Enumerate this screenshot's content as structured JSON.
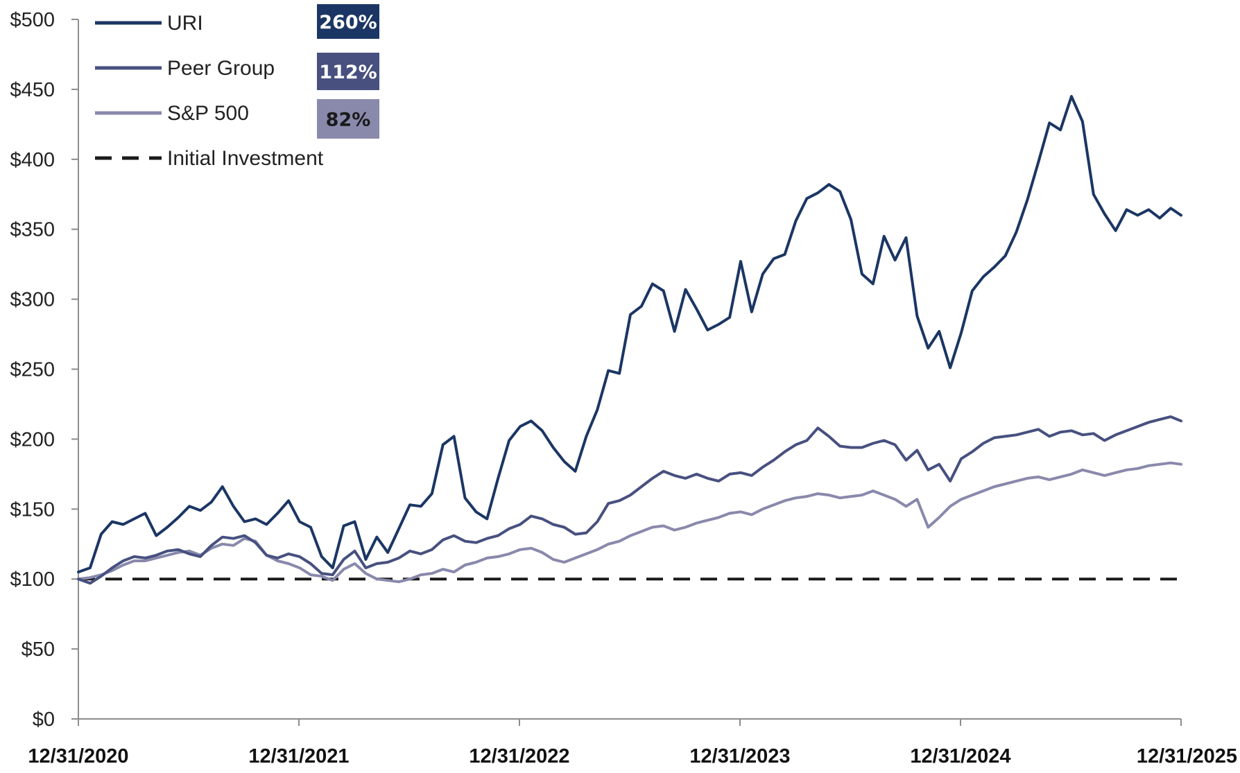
{
  "chart_data": {
    "type": "line",
    "title": "",
    "xlabel": "",
    "ylabel": "",
    "ylim": [
      0,
      500
    ],
    "y_ticks": [
      0,
      50,
      100,
      150,
      200,
      250,
      300,
      350,
      400,
      450,
      500
    ],
    "y_tick_labels": [
      "$0",
      "$50",
      "$100",
      "$150",
      "$200",
      "$250",
      "$300",
      "$350",
      "$400",
      "$450",
      "$500"
    ],
    "x_range": [
      2020.997,
      2025.997
    ],
    "x_ticks": [
      2020.997,
      2021.997,
      2022.997,
      2023.997,
      2024.997,
      2025.997
    ],
    "x_tick_labels": [
      "12/31/2020",
      "12/31/2021",
      "12/31/2022",
      "12/31/2023",
      "12/31/2024",
      "12/31/2025"
    ],
    "grid": false,
    "legend_position": "top-left",
    "colors": {
      "uri": "#1b3664",
      "peer": "#47507f",
      "sp500": "#8889ab",
      "baseline": "#1a1a1a",
      "axis": "#8c8c8c"
    },
    "series": [
      {
        "name": "URI",
        "key": "uri",
        "total_return_label": "260%",
        "badge_color": "#1b3664",
        "badge_text_color": "#ffffff",
        "x": [
          2020.997,
          2021.05,
          2021.1,
          2021.15,
          2021.2,
          2021.25,
          2021.3,
          2021.35,
          2021.4,
          2021.45,
          2021.5,
          2021.55,
          2021.6,
          2021.65,
          2021.7,
          2021.75,
          2021.8,
          2021.85,
          2021.9,
          2021.95,
          2022.0,
          2022.05,
          2022.1,
          2022.15,
          2022.2,
          2022.25,
          2022.3,
          2022.35,
          2022.4,
          2022.45,
          2022.5,
          2022.55,
          2022.6,
          2022.65,
          2022.7,
          2022.75,
          2022.8,
          2022.85,
          2022.9,
          2022.95,
          2023.0,
          2023.05,
          2023.1,
          2023.15,
          2023.2,
          2023.25,
          2023.3,
          2023.35,
          2023.4,
          2023.45,
          2023.5,
          2023.55,
          2023.6,
          2023.65,
          2023.7,
          2023.75,
          2023.8,
          2023.85,
          2023.9,
          2023.95,
          2024.0,
          2024.05,
          2024.1,
          2024.15,
          2024.2,
          2024.25,
          2024.3,
          2024.35,
          2024.4,
          2024.45,
          2024.5,
          2024.55,
          2024.6,
          2024.65,
          2024.7,
          2024.75,
          2024.8,
          2024.85,
          2024.9,
          2024.95,
          2025.0,
          2025.05,
          2025.1,
          2025.15,
          2025.2,
          2025.25,
          2025.3,
          2025.35,
          2025.4,
          2025.45,
          2025.5,
          2025.55,
          2025.6,
          2025.65,
          2025.7,
          2025.75,
          2025.8,
          2025.85,
          2025.9,
          2025.95,
          2025.997
        ],
        "values": [
          105,
          108,
          132,
          141,
          139,
          143,
          147,
          131,
          137,
          144,
          152,
          149,
          155,
          166,
          152,
          141,
          143,
          139,
          147,
          156,
          141,
          137,
          116,
          108,
          138,
          141,
          114,
          130,
          119,
          136,
          153,
          152,
          161,
          196,
          202,
          158,
          148,
          143,
          172,
          199,
          209,
          213,
          206,
          194,
          184,
          177,
          202,
          221,
          249,
          247,
          289,
          295,
          311,
          306,
          277,
          307,
          293,
          278,
          282,
          287,
          327,
          291,
          318,
          329,
          332,
          356,
          372,
          376,
          382,
          377,
          357,
          318,
          311,
          345,
          328,
          344,
          288,
          265,
          277,
          251,
          276,
          306,
          316,
          323,
          331,
          348,
          371,
          398,
          426,
          421,
          445,
          427,
          375,
          361,
          349,
          364,
          360,
          364,
          358,
          365,
          360
        ]
      },
      {
        "name": "Peer Group",
        "key": "peer",
        "total_return_label": "112%",
        "badge_color": "#47507f",
        "badge_text_color": "#ffffff",
        "x": [
          2020.997,
          2021.05,
          2021.1,
          2021.15,
          2021.2,
          2021.25,
          2021.3,
          2021.35,
          2021.4,
          2021.45,
          2021.5,
          2021.55,
          2021.6,
          2021.65,
          2021.7,
          2021.75,
          2021.8,
          2021.85,
          2021.9,
          2021.95,
          2022.0,
          2022.05,
          2022.1,
          2022.15,
          2022.2,
          2022.25,
          2022.3,
          2022.35,
          2022.4,
          2022.45,
          2022.5,
          2022.55,
          2022.6,
          2022.65,
          2022.7,
          2022.75,
          2022.8,
          2022.85,
          2022.9,
          2022.95,
          2023.0,
          2023.05,
          2023.1,
          2023.15,
          2023.2,
          2023.25,
          2023.3,
          2023.35,
          2023.4,
          2023.45,
          2023.5,
          2023.55,
          2023.6,
          2023.65,
          2023.7,
          2023.75,
          2023.8,
          2023.85,
          2023.9,
          2023.95,
          2024.0,
          2024.05,
          2024.1,
          2024.15,
          2024.2,
          2024.25,
          2024.3,
          2024.35,
          2024.4,
          2024.45,
          2024.5,
          2024.55,
          2024.6,
          2024.65,
          2024.7,
          2024.75,
          2024.8,
          2024.85,
          2024.9,
          2024.95,
          2025.0,
          2025.05,
          2025.1,
          2025.15,
          2025.2,
          2025.25,
          2025.3,
          2025.35,
          2025.4,
          2025.45,
          2025.5,
          2025.55,
          2025.6,
          2025.65,
          2025.7,
          2025.75,
          2025.8,
          2025.85,
          2025.9,
          2025.95,
          2025.997
        ],
        "values": [
          100,
          97,
          102,
          108,
          113,
          116,
          115,
          117,
          120,
          121,
          118,
          116,
          124,
          130,
          129,
          131,
          126,
          117,
          115,
          118,
          116,
          111,
          104,
          103,
          114,
          120,
          108,
          111,
          112,
          115,
          120,
          118,
          121,
          128,
          131,
          127,
          126,
          129,
          131,
          136,
          139,
          145,
          143,
          139,
          137,
          132,
          133,
          141,
          154,
          156,
          160,
          166,
          172,
          177,
          174,
          172,
          175,
          172,
          170,
          175,
          176,
          174,
          180,
          185,
          191,
          196,
          199,
          208,
          202,
          195,
          194,
          194,
          197,
          199,
          196,
          185,
          192,
          178,
          182,
          170,
          186,
          191,
          197,
          201,
          202,
          203,
          205,
          207,
          202,
          205,
          206,
          203,
          204,
          199,
          203,
          206,
          209,
          212,
          214,
          216,
          213
        ]
      },
      {
        "name": "S&P 500",
        "key": "sp500",
        "total_return_label": "82%",
        "badge_color": "#8889ab",
        "badge_text_color": "#1a1a1a",
        "x": [
          2020.997,
          2021.05,
          2021.1,
          2021.15,
          2021.2,
          2021.25,
          2021.3,
          2021.35,
          2021.4,
          2021.45,
          2021.5,
          2021.55,
          2021.6,
          2021.65,
          2021.7,
          2021.75,
          2021.8,
          2021.85,
          2021.9,
          2021.95,
          2022.0,
          2022.05,
          2022.1,
          2022.15,
          2022.2,
          2022.25,
          2022.3,
          2022.35,
          2022.4,
          2022.45,
          2022.5,
          2022.55,
          2022.6,
          2022.65,
          2022.7,
          2022.75,
          2022.8,
          2022.85,
          2022.9,
          2022.95,
          2023.0,
          2023.05,
          2023.1,
          2023.15,
          2023.2,
          2023.25,
          2023.3,
          2023.35,
          2023.4,
          2023.45,
          2023.5,
          2023.55,
          2023.6,
          2023.65,
          2023.7,
          2023.75,
          2023.8,
          2023.85,
          2023.9,
          2023.95,
          2024.0,
          2024.05,
          2024.1,
          2024.15,
          2024.2,
          2024.25,
          2024.3,
          2024.35,
          2024.4,
          2024.45,
          2024.5,
          2024.55,
          2024.6,
          2024.65,
          2024.7,
          2024.75,
          2024.8,
          2024.85,
          2024.9,
          2024.95,
          2025.0,
          2025.05,
          2025.1,
          2025.15,
          2025.2,
          2025.25,
          2025.3,
          2025.35,
          2025.4,
          2025.45,
          2025.5,
          2025.55,
          2025.6,
          2025.65,
          2025.7,
          2025.75,
          2025.8,
          2025.85,
          2025.9,
          2025.95,
          2025.997
        ],
        "values": [
          100,
          101,
          103,
          106,
          110,
          113,
          113,
          115,
          117,
          119,
          120,
          117,
          122,
          125,
          124,
          129,
          127,
          117,
          113,
          111,
          108,
          103,
          102,
          99,
          107,
          111,
          104,
          100,
          99,
          98,
          100,
          103,
          104,
          107,
          105,
          110,
          112,
          115,
          116,
          118,
          121,
          122,
          119,
          114,
          112,
          115,
          118,
          121,
          125,
          127,
          131,
          134,
          137,
          138,
          135,
          137,
          140,
          142,
          144,
          147,
          148,
          146,
          150,
          153,
          156,
          158,
          159,
          161,
          160,
          158,
          159,
          160,
          163,
          160,
          157,
          152,
          157,
          137,
          144,
          152,
          157,
          160,
          163,
          166,
          168,
          170,
          172,
          173,
          171,
          173,
          175,
          178,
          176,
          174,
          176,
          178,
          179,
          181,
          182,
          183,
          182
        ]
      }
    ],
    "baseline": {
      "name": "Initial Investment",
      "key": "baseline",
      "value": 100
    }
  }
}
